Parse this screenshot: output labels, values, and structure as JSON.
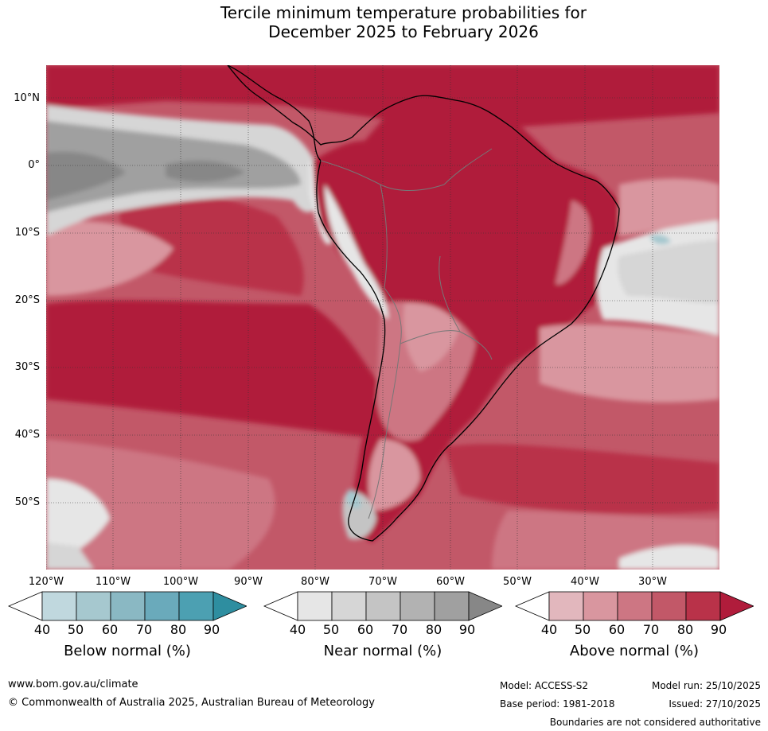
{
  "title": {
    "line1": "Tercile minimum temperature probabilities for",
    "line2": "December 2025 to February 2026"
  },
  "lat_labels": [
    "10°N",
    "0°",
    "10°S",
    "20°S",
    "30°S",
    "40°S",
    "50°S"
  ],
  "lon_labels": [
    "120°W",
    "110°W",
    "100°W",
    "90°W",
    "80°W",
    "70°W",
    "60°W",
    "50°W",
    "40°W",
    "30°W"
  ],
  "colorbars": {
    "below": {
      "label": "Below normal (%)",
      "ticks": [
        "40",
        "50",
        "60",
        "70",
        "80",
        "90"
      ],
      "colors": [
        "#ffffff",
        "#c0d8de",
        "#a6c8cf",
        "#8ab8c3",
        "#6aaabb",
        "#4ca0b2",
        "#2e8ea0"
      ]
    },
    "near": {
      "label": "Near normal (%)",
      "ticks": [
        "40",
        "50",
        "60",
        "70",
        "80",
        "90"
      ],
      "colors": [
        "#ffffff",
        "#e6e6e6",
        "#d6d6d6",
        "#c4c4c4",
        "#b2b2b2",
        "#a0a0a0",
        "#878787"
      ]
    },
    "above": {
      "label": "Above normal (%)",
      "ticks": [
        "40",
        "50",
        "60",
        "70",
        "80",
        "90"
      ],
      "colors": [
        "#ffffff",
        "#e2b7bd",
        "#d9969f",
        "#cd7683",
        "#c25868",
        "#b93249",
        "#b01c3b"
      ]
    }
  },
  "footer": {
    "url": "www.bom.gov.au/climate",
    "copyright": "© Commonwealth of Australia 2025, Australian Bureau of Meteorology",
    "model": "Model: ACCESS-S2",
    "model_run": "Model run: 25/10/2025",
    "base_period": "Base period: 1981-2018",
    "issued": "Issued: 27/10/2025",
    "disclaimer": "Boundaries are not considered authoritative"
  }
}
